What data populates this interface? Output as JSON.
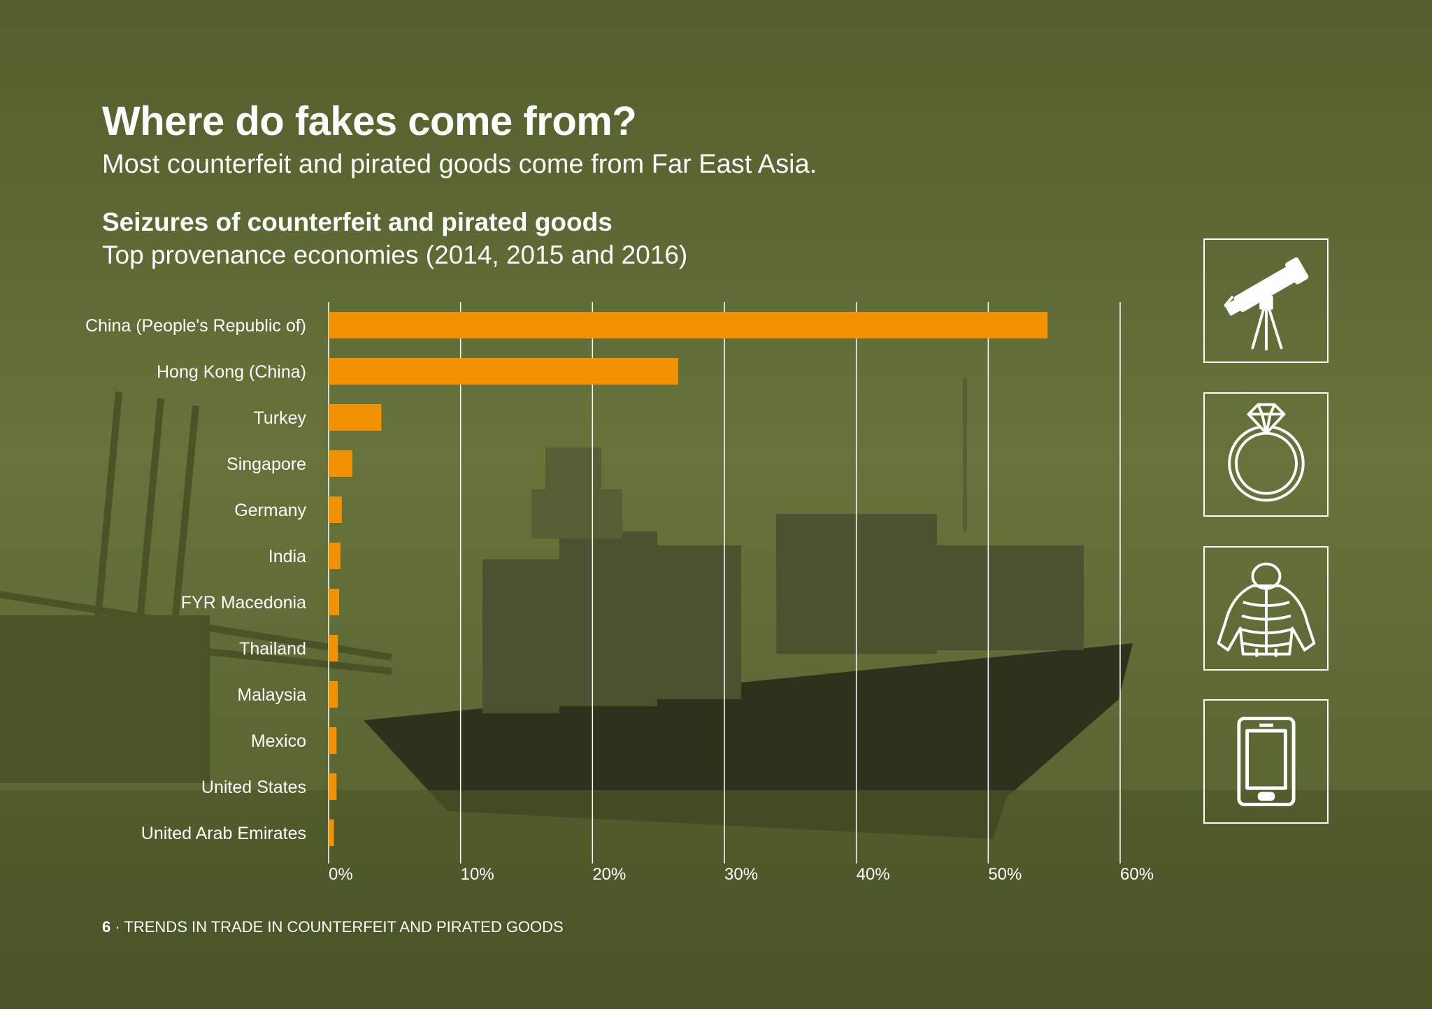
{
  "header": {
    "title": "Where do fakes come from?",
    "subtitle": "Most counterfeit and pirated goods come from Far East Asia."
  },
  "chart_data": {
    "type": "bar",
    "orientation": "horizontal",
    "title": "Seizures of counterfeit and pirated goods",
    "subtitle": "Top provenance economies (2014, 2015 and 2016)",
    "categories": [
      "China (People's Republic of)",
      "Hong Kong (China)",
      "Turkey",
      "Singapore",
      "Germany",
      "India",
      "FYR Macedonia",
      "Thailand",
      "Malaysia",
      "Mexico",
      "United States",
      "United Arab Emirates"
    ],
    "values": [
      54.5,
      26.5,
      4.0,
      1.8,
      1.0,
      0.9,
      0.8,
      0.7,
      0.7,
      0.6,
      0.6,
      0.4
    ],
    "xlim": [
      0,
      60
    ],
    "xticks": [
      "0%",
      "10%",
      "20%",
      "30%",
      "40%",
      "50%",
      "60%"
    ],
    "grid": "vertical",
    "bar_color": "#F39200"
  },
  "icons": [
    "telescope-icon",
    "diamond-ring-icon",
    "jacket-icon",
    "smartphone-icon"
  ],
  "footer": {
    "page_number": "6",
    "separator": "·",
    "text": "TRENDS IN TRADE IN COUNTERFEIT AND PIRATED GOODS"
  },
  "colors": {
    "background": "#5E6B33",
    "accent": "#F39200",
    "text": "#FFFFFF"
  }
}
